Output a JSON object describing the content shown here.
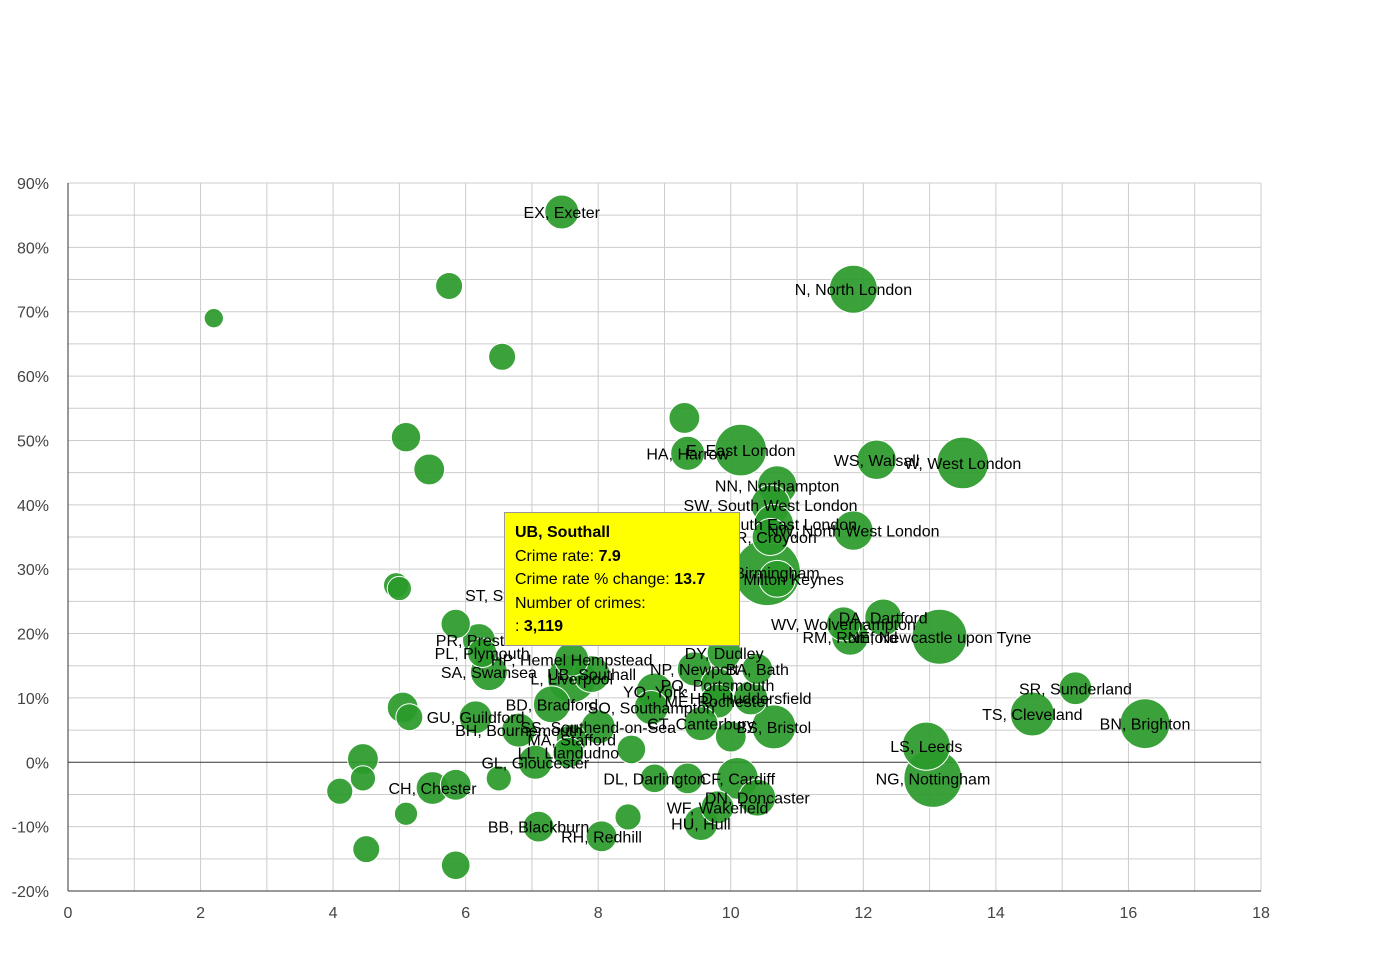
{
  "chart_data": {
    "type": "bubble",
    "title": "",
    "xlabel": "",
    "ylabel": "",
    "xlim": [
      0,
      18
    ],
    "ylim": [
      -20,
      90
    ],
    "x_ticks": [
      "0",
      "2",
      "4",
      "6",
      "8",
      "10",
      "12",
      "14",
      "16",
      "18"
    ],
    "y_ticks": [
      "-20%",
      "-10%",
      "0%",
      "10%",
      "20%",
      "30%",
      "40%",
      "50%",
      "60%",
      "70%",
      "80%",
      "90%"
    ],
    "x_tick_values": [
      0,
      2,
      4,
      6,
      8,
      10,
      12,
      14,
      16,
      18
    ],
    "y_tick_values": [
      -20,
      -10,
      0,
      10,
      20,
      30,
      40,
      50,
      60,
      70,
      80,
      90
    ],
    "bubble_color": "#2a9a2a",
    "bubble_stroke": "#ffffff",
    "points": [
      {
        "label": "EX, Exeter",
        "x": 7.45,
        "y": 85.5,
        "size": 2
      },
      {
        "label": "N, North London",
        "x": 11.85,
        "y": 73.5,
        "size": 5
      },
      {
        "label": "",
        "x": 2.2,
        "y": 69,
        "size": 0.3
      },
      {
        "label": "",
        "x": 5.75,
        "y": 74,
        "size": 1
      },
      {
        "label": "",
        "x": 6.55,
        "y": 63,
        "size": 1
      },
      {
        "label": "",
        "x": 9.3,
        "y": 53.5,
        "size": 1.5
      },
      {
        "label": "HA, Harrow",
        "x": 9.35,
        "y": 48,
        "size": 2
      },
      {
        "label": "E, East London",
        "x": 10.15,
        "y": 48.5,
        "size": 6
      },
      {
        "label": "WS, Walsall",
        "x": 12.2,
        "y": 47,
        "size": 3
      },
      {
        "label": "W, West London",
        "x": 13.5,
        "y": 46.5,
        "size": 6
      },
      {
        "label": "",
        "x": 5.1,
        "y": 50.5,
        "size": 1.3
      },
      {
        "label": "",
        "x": 5.45,
        "y": 45.5,
        "size": 1.5
      },
      {
        "label": "NN, Northampton",
        "x": 10.7,
        "y": 43,
        "size": 3
      },
      {
        "label": "SW, South West London",
        "x": 10.6,
        "y": 40,
        "size": 3
      },
      {
        "label": "SE, South East London",
        "x": 10.65,
        "y": 37,
        "size": 3
      },
      {
        "label": "NW, North West London",
        "x": 11.85,
        "y": 36,
        "size": 3
      },
      {
        "label": "CR, Croydon",
        "x": 10.6,
        "y": 35,
        "size": 2.5
      },
      {
        "label": "B, Birmingham",
        "x": 10.55,
        "y": 29.5,
        "size": 11
      },
      {
        "label": "MK, Milton Keynes",
        "x": 10.7,
        "y": 28.5,
        "size": 2.5
      },
      {
        "label": "",
        "x": 4.95,
        "y": 27.5,
        "size": 0.8
      },
      {
        "label": "",
        "x": 5.0,
        "y": 27,
        "size": 0.7
      },
      {
        "label": "DA, Dartford",
        "x": 12.3,
        "y": 22.5,
        "size": 2.5
      },
      {
        "label": "WV, Wolverhampton",
        "x": 11.7,
        "y": 21.5,
        "size": 2
      },
      {
        "label": "RM, Romford",
        "x": 11.8,
        "y": 19.5,
        "size": 2.5
      },
      {
        "label": "NE, Newcastle upon Tyne",
        "x": 13.15,
        "y": 19.5,
        "size": 7
      },
      {
        "label": "",
        "x": 5.85,
        "y": 21.5,
        "size": 1.3
      },
      {
        "label": "PR, Preston",
        "x": 6.2,
        "y": 19,
        "size": 1.8
      },
      {
        "label": "ST, Stoke-on-Trent",
        "x": 7.0,
        "y": 26,
        "size": 2
      },
      {
        "label": "DY, Dudley",
        "x": 9.9,
        "y": 17,
        "size": 2
      },
      {
        "label": "UB, Southall",
        "x": 7.9,
        "y": 13.7,
        "size": 2.5
      },
      {
        "label": "HP, Hemel Hempstead",
        "x": 7.6,
        "y": 16,
        "size": 2
      },
      {
        "label": "PL, Plymouth",
        "x": 6.25,
        "y": 17,
        "size": 1.3
      },
      {
        "label": "L, Liverpool",
        "x": 7.6,
        "y": 13,
        "size": 5
      },
      {
        "label": "SA, Swansea",
        "x": 6.35,
        "y": 14,
        "size": 2.5
      },
      {
        "label": "NP, Newport",
        "x": 9.45,
        "y": 14.5,
        "size": 2
      },
      {
        "label": "BA, Bath",
        "x": 10.4,
        "y": 14.5,
        "size": 1.5
      },
      {
        "label": "PO, Portsmouth",
        "x": 9.8,
        "y": 12,
        "size": 2
      },
      {
        "label": "YO, York",
        "x": 8.85,
        "y": 11,
        "size": 2.5
      },
      {
        "label": "ME, Rochester",
        "x": 9.8,
        "y": 9.5,
        "size": 2
      },
      {
        "label": "HD, Huddersfield",
        "x": 10.3,
        "y": 10,
        "size": 2
      },
      {
        "label": "BD, Bradford",
        "x": 7.3,
        "y": 9,
        "size": 2.5
      },
      {
        "label": "SO, Southampton",
        "x": 8.8,
        "y": 8.5,
        "size": 2
      },
      {
        "label": "CT, Canterbury",
        "x": 9.55,
        "y": 6,
        "size": 2
      },
      {
        "label": "BS, Bristol",
        "x": 10.65,
        "y": 5.5,
        "size": 4
      },
      {
        "label": "GU, Guildford",
        "x": 6.15,
        "y": 7,
        "size": 1.8
      },
      {
        "label": "",
        "x": 5.05,
        "y": 8.5,
        "size": 1.5
      },
      {
        "label": "",
        "x": 5.15,
        "y": 7,
        "size": 1
      },
      {
        "label": "SS, Southend-on-Sea",
        "x": 8.0,
        "y": 5.5,
        "size": 2
      },
      {
        "label": "BH, Bournemouth",
        "x": 6.8,
        "y": 5,
        "size": 2
      },
      {
        "label": "MA, Stafford",
        "x": 7.6,
        "y": 3.5,
        "size": 1.5
      },
      {
        "label": "",
        "x": 10.0,
        "y": 4,
        "size": 1.5
      },
      {
        "label": "",
        "x": 8.5,
        "y": 2,
        "size": 1.2
      },
      {
        "label": "LL, Llandudno",
        "x": 7.55,
        "y": 1.5,
        "size": 1.5
      },
      {
        "label": "LS, Leeds",
        "x": 12.95,
        "y": 2.5,
        "size": 5
      },
      {
        "label": "SR, Sunderland",
        "x": 15.2,
        "y": 11.5,
        "size": 1.8
      },
      {
        "label": "TS, Cleveland",
        "x": 14.55,
        "y": 7.5,
        "size": 4
      },
      {
        "label": "BN, Brighton",
        "x": 16.25,
        "y": 6,
        "size": 5.5
      },
      {
        "label": "",
        "x": 4.45,
        "y": 0.5,
        "size": 1.5
      },
      {
        "label": "GL, Gloucester",
        "x": 7.05,
        "y": 0,
        "size": 2
      },
      {
        "label": "NG, Nottingham",
        "x": 13.05,
        "y": -2.5,
        "size": 8
      },
      {
        "label": "",
        "x": 4.45,
        "y": -2.5,
        "size": 0.8
      },
      {
        "label": "",
        "x": 6.5,
        "y": -2.5,
        "size": 0.8
      },
      {
        "label": "",
        "x": 4.1,
        "y": -4.5,
        "size": 0.9
      },
      {
        "label": "CH, Chester",
        "x": 5.5,
        "y": -4,
        "size": 1.8
      },
      {
        "label": "",
        "x": 5.85,
        "y": -3.5,
        "size": 1.5
      },
      {
        "label": "DL, Darlington",
        "x": 8.85,
        "y": -2.5,
        "size": 1.2
      },
      {
        "label": "CF, Cardiff",
        "x": 10.1,
        "y": -2.5,
        "size": 3.5
      },
      {
        "label": "",
        "x": 9.35,
        "y": -2.5,
        "size": 1.5
      },
      {
        "label": "DN, Doncaster",
        "x": 10.4,
        "y": -5.5,
        "size": 2.5
      },
      {
        "label": "WF, Wakefield",
        "x": 9.8,
        "y": -7,
        "size": 1.8
      },
      {
        "label": "",
        "x": 8.45,
        "y": -8.5,
        "size": 0.9
      },
      {
        "label": "HU, Hull",
        "x": 9.55,
        "y": -9.5,
        "size": 2
      },
      {
        "label": "",
        "x": 5.1,
        "y": -8,
        "size": 0.6
      },
      {
        "label": "BB, Blackburn",
        "x": 7.1,
        "y": -10,
        "size": 1.5
      },
      {
        "label": "RH, Redhill",
        "x": 8.05,
        "y": -11.5,
        "size": 1.5
      },
      {
        "label": "",
        "x": 4.5,
        "y": -13.5,
        "size": 1
      },
      {
        "label": "",
        "x": 5.85,
        "y": -16,
        "size": 1.2
      }
    ]
  },
  "tooltip": {
    "title": "UB, Southall",
    "crime_rate_label": "Crime rate:",
    "crime_rate_value": "7.9",
    "change_label": "Crime rate % change:",
    "change_value": "13.7",
    "crimes_label": "Number of crimes:",
    "crimes_prefix": ":",
    "crimes_value": "3,119"
  }
}
